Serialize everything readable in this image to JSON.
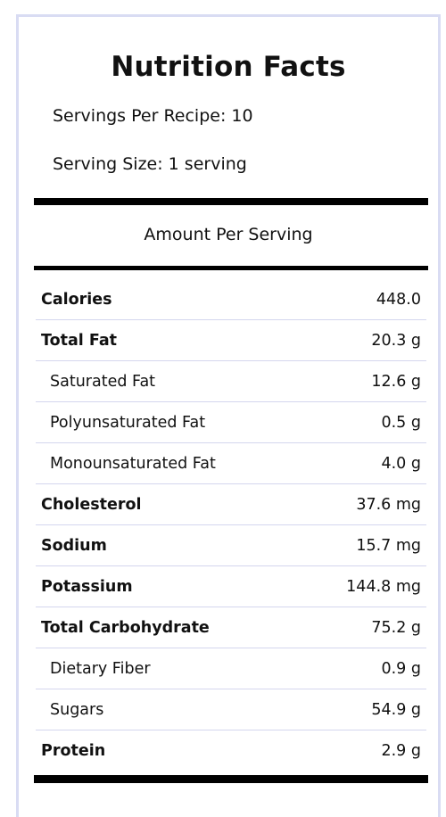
{
  "title": "Nutrition Facts",
  "servings_per_recipe": "Servings Per Recipe: 10",
  "serving_size": "Serving Size: 1 serving",
  "amount_per_serving": "Amount Per Serving",
  "rows": [
    {
      "label": "Calories",
      "value": "448.0",
      "type": "main"
    },
    {
      "label": "Total Fat",
      "value": "20.3 g",
      "type": "main"
    },
    {
      "label": "Saturated Fat",
      "value": "12.6 g",
      "type": "sub"
    },
    {
      "label": "Polyunsaturated Fat",
      "value": "0.5 g",
      "type": "sub"
    },
    {
      "label": "Monounsaturated Fat",
      "value": "4.0 g",
      "type": "sub"
    },
    {
      "label": "Cholesterol",
      "value": "37.6 mg",
      "type": "main"
    },
    {
      "label": "Sodium",
      "value": "15.7 mg",
      "type": "main"
    },
    {
      "label": "Potassium",
      "value": "144.8 mg",
      "type": "main"
    },
    {
      "label": "Total Carbohydrate",
      "value": "75.2 g",
      "type": "main"
    },
    {
      "label": "Dietary Fiber",
      "value": "0.9 g",
      "type": "sub"
    },
    {
      "label": "Sugars",
      "value": "54.9 g",
      "type": "sub"
    },
    {
      "label": "Protein",
      "value": "2.9 g",
      "type": "main"
    }
  ],
  "colors": {
    "border": "#d9dcf3",
    "row_divider": "#d4d6ee",
    "rule": "#000000"
  }
}
